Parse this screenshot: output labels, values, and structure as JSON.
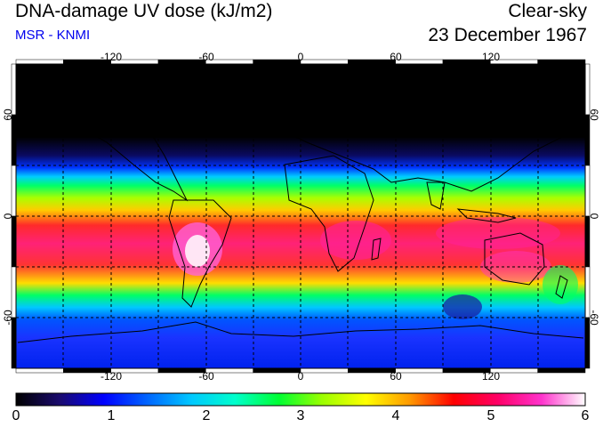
{
  "header": {
    "title": "DNA-damage UV dose (kJ/m2)",
    "subtitle": "MSR - KNMI",
    "sky_condition": "Clear-sky",
    "date": "23 December 1967"
  },
  "map": {
    "projection": "equirectangular",
    "lon_range": [
      -180,
      180
    ],
    "lat_range": [
      -90,
      90
    ],
    "lon_ticks": [
      -120,
      -60,
      0,
      60,
      120
    ],
    "lat_ticks": [
      60,
      0,
      -60
    ],
    "lon_tick_labels": [
      "-120",
      "-60",
      "0",
      "60",
      "120"
    ],
    "lat_tick_labels": [
      "60",
      "0",
      "-60"
    ],
    "gridlines": "dashed every 30 degrees",
    "coastlines": true
  },
  "colorbar": {
    "min": 0,
    "max": 6,
    "tick_labels": [
      "0",
      "1",
      "2",
      "3",
      "4",
      "5",
      "6"
    ],
    "colors": [
      "#000000",
      "#1a0a6e",
      "#0000ff",
      "#0066ff",
      "#00c8ff",
      "#00ffcc",
      "#00ff33",
      "#9cff00",
      "#ffff00",
      "#ff9900",
      "#ff0000",
      "#ff0066",
      "#ff33cc",
      "#ffffff"
    ]
  }
}
